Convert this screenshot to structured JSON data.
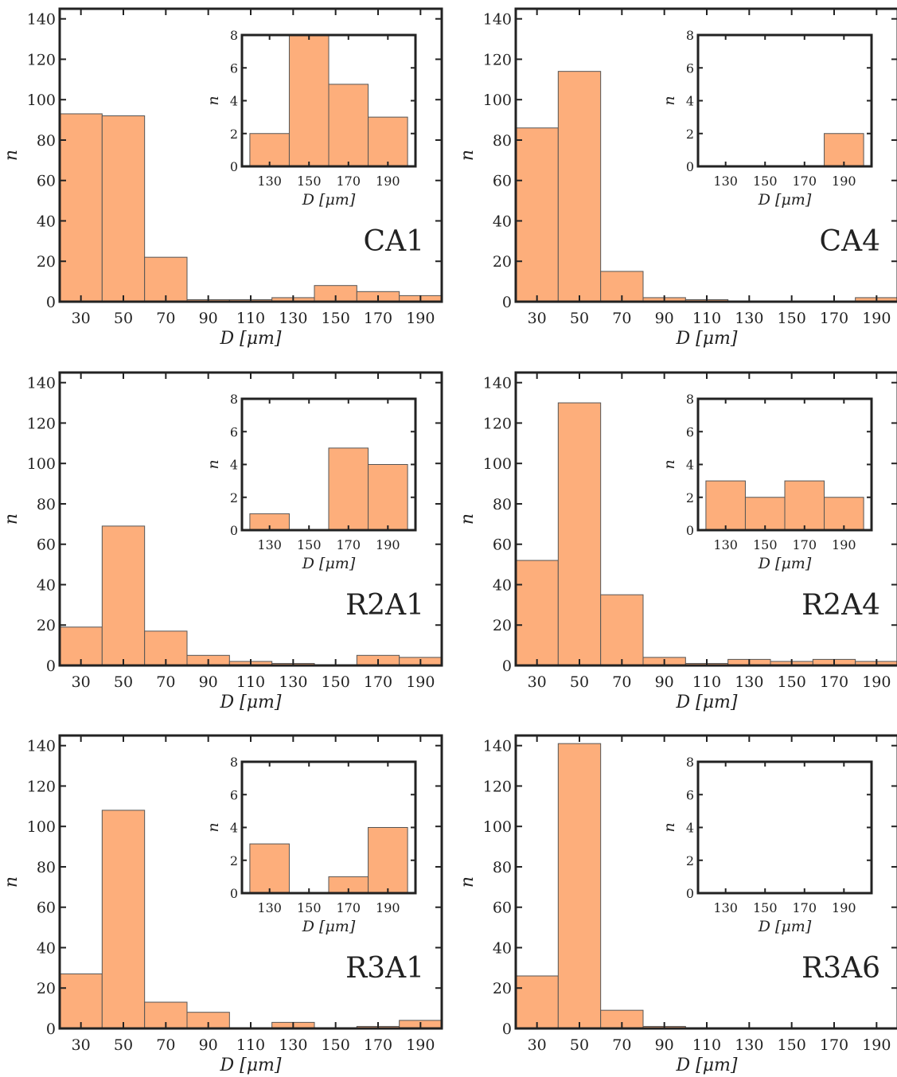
{
  "colors": {
    "bar": "#FDAE7B",
    "bar_edge": "#555555",
    "axis": "#222222"
  },
  "chart_data": [
    {
      "type": "bar",
      "label": "CA1",
      "xlabel": "D [μm]",
      "ylabel": "n",
      "bin_edges": [
        20,
        40,
        60,
        80,
        100,
        120,
        140,
        160,
        180,
        200
      ],
      "xticks": [
        30,
        50,
        70,
        90,
        110,
        130,
        150,
        170,
        190
      ],
      "yticks": [
        0,
        20,
        40,
        60,
        80,
        100,
        120,
        140
      ],
      "xlim": [
        20,
        200
      ],
      "ylim": [
        0,
        145
      ],
      "values": [
        93,
        92,
        22,
        1,
        1,
        2,
        8,
        5,
        3
      ],
      "inset": {
        "xlabel": "D [μm]",
        "ylabel": "n",
        "bin_edges": [
          120,
          140,
          160,
          180,
          200
        ],
        "xticks": [
          130,
          150,
          170,
          190
        ],
        "yticks": [
          0,
          2,
          4,
          6,
          8
        ],
        "xlim": [
          116,
          204
        ],
        "ylim": [
          0,
          8
        ],
        "values": [
          2,
          8,
          5,
          3
        ]
      }
    },
    {
      "type": "bar",
      "label": "CA4",
      "xlabel": "D [μm]",
      "ylabel": "n",
      "bin_edges": [
        20,
        40,
        60,
        80,
        100,
        120,
        140,
        160,
        180,
        200
      ],
      "xticks": [
        30,
        50,
        70,
        90,
        110,
        130,
        150,
        170,
        190
      ],
      "yticks": [
        0,
        20,
        40,
        60,
        80,
        100,
        120,
        140
      ],
      "xlim": [
        20,
        200
      ],
      "ylim": [
        0,
        145
      ],
      "values": [
        86,
        114,
        15,
        2,
        1,
        0,
        0,
        0,
        2
      ],
      "inset": {
        "xlabel": "D [μm]",
        "ylabel": "n",
        "bin_edges": [
          120,
          140,
          160,
          180,
          200
        ],
        "xticks": [
          130,
          150,
          170,
          190
        ],
        "yticks": [
          0,
          2,
          4,
          6,
          8
        ],
        "xlim": [
          116,
          204
        ],
        "ylim": [
          0,
          8
        ],
        "values": [
          0,
          0,
          0,
          2
        ]
      }
    },
    {
      "type": "bar",
      "label": "R2A1",
      "xlabel": "D [μm]",
      "ylabel": "n",
      "bin_edges": [
        20,
        40,
        60,
        80,
        100,
        120,
        140,
        160,
        180,
        200
      ],
      "xticks": [
        30,
        50,
        70,
        90,
        110,
        130,
        150,
        170,
        190
      ],
      "yticks": [
        0,
        20,
        40,
        60,
        80,
        100,
        120,
        140
      ],
      "xlim": [
        20,
        200
      ],
      "ylim": [
        0,
        145
      ],
      "values": [
        19,
        69,
        17,
        5,
        2,
        1,
        0,
        5,
        4
      ],
      "inset": {
        "xlabel": "D [μm]",
        "ylabel": "n",
        "bin_edges": [
          120,
          140,
          160,
          180,
          200
        ],
        "xticks": [
          130,
          150,
          170,
          190
        ],
        "yticks": [
          0,
          2,
          4,
          6,
          8
        ],
        "xlim": [
          116,
          204
        ],
        "ylim": [
          0,
          8
        ],
        "values": [
          1,
          0,
          5,
          4
        ]
      }
    },
    {
      "type": "bar",
      "label": "R2A4",
      "xlabel": "D [μm]",
      "ylabel": "n",
      "bin_edges": [
        20,
        40,
        60,
        80,
        100,
        120,
        140,
        160,
        180,
        200
      ],
      "xticks": [
        30,
        50,
        70,
        90,
        110,
        130,
        150,
        170,
        190
      ],
      "yticks": [
        0,
        20,
        40,
        60,
        80,
        100,
        120,
        140
      ],
      "xlim": [
        20,
        200
      ],
      "ylim": [
        0,
        145
      ],
      "values": [
        52,
        130,
        35,
        4,
        1,
        3,
        2,
        3,
        2
      ],
      "inset": {
        "xlabel": "D [μm]",
        "ylabel": "n",
        "bin_edges": [
          120,
          140,
          160,
          180,
          200
        ],
        "xticks": [
          130,
          150,
          170,
          190
        ],
        "yticks": [
          0,
          2,
          4,
          6,
          8
        ],
        "xlim": [
          116,
          204
        ],
        "ylim": [
          0,
          8
        ],
        "values": [
          3,
          2,
          3,
          2
        ]
      }
    },
    {
      "type": "bar",
      "label": "R3A1",
      "xlabel": "D [μm]",
      "ylabel": "n",
      "bin_edges": [
        20,
        40,
        60,
        80,
        100,
        120,
        140,
        160,
        180,
        200
      ],
      "xticks": [
        30,
        50,
        70,
        90,
        110,
        130,
        150,
        170,
        190
      ],
      "yticks": [
        0,
        20,
        40,
        60,
        80,
        100,
        120,
        140
      ],
      "xlim": [
        20,
        200
      ],
      "ylim": [
        0,
        145
      ],
      "values": [
        27,
        108,
        13,
        8,
        0,
        3,
        0,
        1,
        4
      ],
      "inset": {
        "xlabel": "D [μm]",
        "ylabel": "n",
        "bin_edges": [
          120,
          140,
          160,
          180,
          200
        ],
        "xticks": [
          130,
          150,
          170,
          190
        ],
        "yticks": [
          0,
          2,
          4,
          6,
          8
        ],
        "xlim": [
          116,
          204
        ],
        "ylim": [
          0,
          8
        ],
        "values": [
          3,
          0,
          1,
          4
        ]
      }
    },
    {
      "type": "bar",
      "label": "R3A6",
      "xlabel": "D [μm]",
      "ylabel": "n",
      "bin_edges": [
        20,
        40,
        60,
        80,
        100,
        120,
        140,
        160,
        180,
        200
      ],
      "xticks": [
        30,
        50,
        70,
        90,
        110,
        130,
        150,
        170,
        190
      ],
      "yticks": [
        0,
        20,
        40,
        60,
        80,
        100,
        120,
        140
      ],
      "xlim": [
        20,
        200
      ],
      "ylim": [
        0,
        145
      ],
      "values": [
        26,
        141,
        9,
        1,
        0,
        0,
        0,
        0,
        0
      ],
      "inset": {
        "xlabel": "D [μm]",
        "ylabel": "n",
        "bin_edges": [
          120,
          140,
          160,
          180,
          200
        ],
        "xticks": [
          130,
          150,
          170,
          190
        ],
        "yticks": [
          0,
          2,
          4,
          6,
          8
        ],
        "xlim": [
          116,
          204
        ],
        "ylim": [
          0,
          8
        ],
        "values": [
          0,
          0,
          0,
          0
        ]
      }
    }
  ]
}
